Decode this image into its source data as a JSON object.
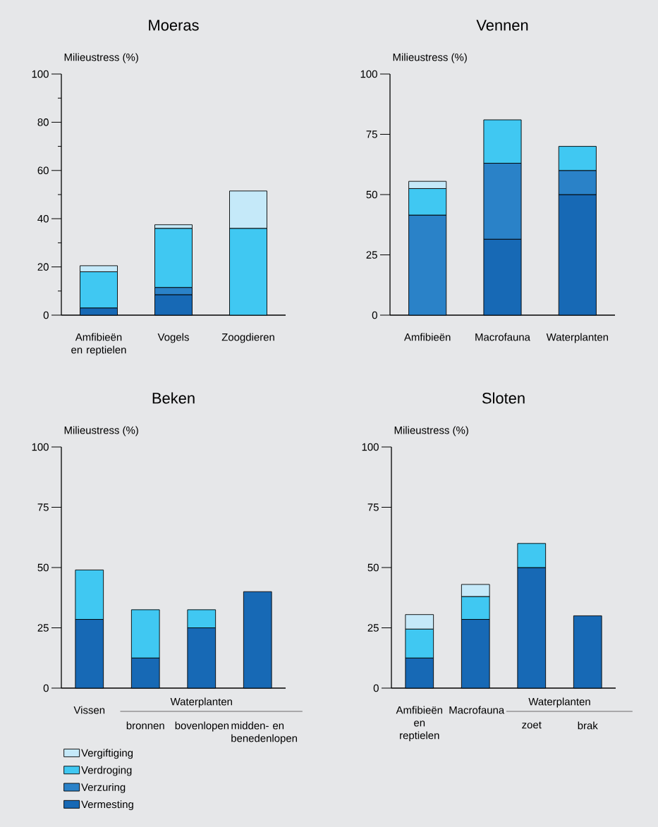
{
  "chart_data": [
    {
      "type": "bar",
      "title": "Moeras",
      "ylabel": "Milieustress (%)",
      "categories": [
        "Amfibieën en reptielen",
        "Vogels",
        "Zoogdieren"
      ],
      "stacked": true,
      "ylim": [
        0,
        100
      ],
      "yticks": [
        0,
        {
          "value": 10,
          "label": null
        },
        20,
        {
          "value": 30,
          "label": null
        },
        40,
        {
          "value": 50,
          "label": null
        },
        60,
        {
          "value": 70,
          "label": null
        },
        80,
        {
          "value": 90,
          "label": null
        },
        100
      ],
      "series": [
        {
          "color": "#1769b5",
          "values": [
            3,
            8.5,
            null
          ]
        },
        {
          "color": "#2a82c8",
          "values": [
            null,
            3,
            null
          ]
        },
        {
          "color": "#40c8f2",
          "values": [
            15,
            24.5,
            36
          ]
        },
        {
          "color": "#c5e9f9",
          "values": [
            2.5,
            1.5,
            15.5
          ]
        }
      ]
    },
    {
      "type": "bar",
      "title": "Vennen",
      "ylabel": "Milieustress (%)",
      "categories": [
        "Amfibieën",
        "Macrofauna",
        "Waterplanten"
      ],
      "stacked": true,
      "ylim": [
        0,
        100
      ],
      "yticks": [
        0,
        25,
        50,
        75,
        100
      ],
      "series": [
        {
          "color": "#1769b5",
          "values": [
            null,
            31.5,
            50
          ]
        },
        {
          "color": "#2a82c8",
          "values": [
            41.5,
            31.5,
            10
          ]
        },
        {
          "color": "#40c8f2",
          "values": [
            11,
            18,
            10
          ]
        },
        {
          "color": "#c5e9f9",
          "values": [
            3,
            null,
            null
          ]
        }
      ]
    },
    {
      "type": "bar",
      "title": "Beken",
      "ylabel": "Milieustress (%)",
      "categories": [
        "Vissen",
        "bronnen",
        "bovenlopen",
        "midden- en benedenlopen"
      ],
      "stacked": true,
      "ylim": [
        0,
        100
      ],
      "yticks": [
        0,
        25,
        50,
        75,
        100
      ],
      "annotations": [
        "Waterplanten"
      ],
      "legend": "bottom left",
      "series": [
        {
          "name": "Vermesting",
          "color": "#1769b5",
          "values": [
            28.5,
            12.5,
            25,
            40
          ]
        },
        {
          "name": "Verzuring",
          "color": "#2a82c8",
          "values": [
            null,
            null,
            null,
            null
          ]
        },
        {
          "name": "Verdroging",
          "color": "#40c8f2",
          "values": [
            20.5,
            20,
            7.5,
            null
          ]
        },
        {
          "name": "Vergiftiging",
          "color": "#c5e9f9",
          "values": [
            null,
            null,
            null,
            null
          ]
        }
      ]
    },
    {
      "type": "bar",
      "title": "Sloten",
      "ylabel": "Milieustress (%)",
      "categories": [
        "Amfibieën en reptielen",
        "Macrofauna",
        "zoet",
        "brak"
      ],
      "stacked": true,
      "ylim": [
        0,
        100
      ],
      "yticks": [
        0,
        25,
        50,
        75,
        100
      ],
      "annotations": [
        "Waterplanten"
      ],
      "series": [
        {
          "color": "#1769b5",
          "values": [
            12.5,
            28.5,
            50,
            30
          ]
        },
        {
          "color": "#2a82c8",
          "values": [
            null,
            null,
            null,
            null
          ]
        },
        {
          "color": "#40c8f2",
          "values": [
            12,
            9.5,
            10,
            null
          ]
        },
        {
          "color": "#c5e9f9",
          "values": [
            6,
            5,
            null,
            null
          ]
        }
      ]
    }
  ]
}
